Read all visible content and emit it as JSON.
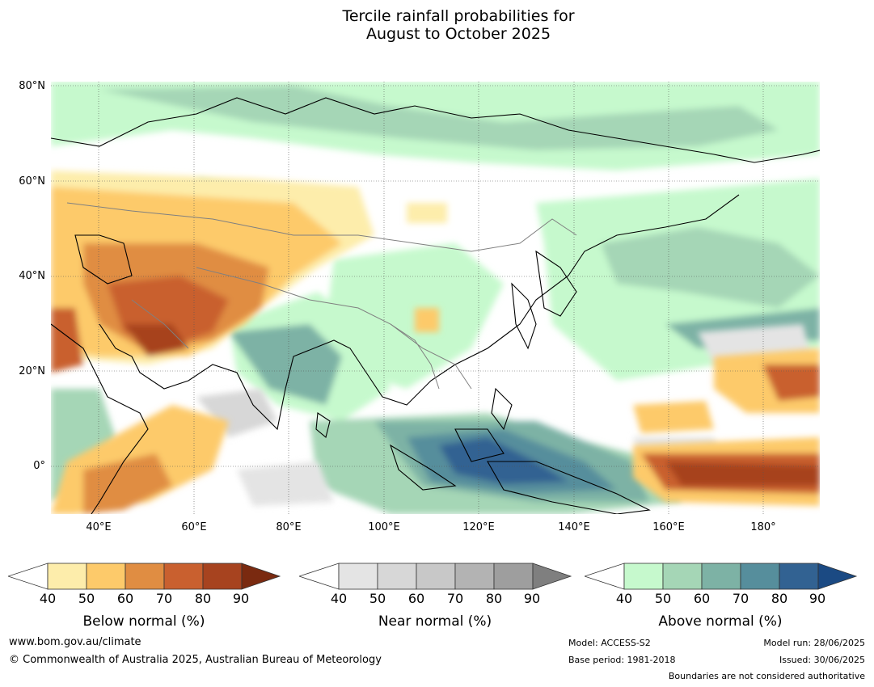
{
  "title_line1": "Tercile rainfall probabilities for",
  "title_line2": "August to October 2025",
  "lat_labels": [
    "80°N",
    "60°N",
    "40°N",
    "20°N",
    "0°"
  ],
  "lon_labels": [
    "40°E",
    "60°E",
    "80°E",
    "100°E",
    "120°E",
    "140°E",
    "160°E",
    "180°"
  ],
  "colorbars": [
    {
      "label": "Below normal (%)",
      "colors": [
        "#fdedab",
        "#fdca6a",
        "#e08d42",
        "#c9602f",
        "#a7431f",
        "#7a2a10"
      ],
      "ticks": [
        "40",
        "50",
        "60",
        "70",
        "80",
        "90"
      ]
    },
    {
      "label": "Near normal (%)",
      "colors": [
        "#e4e4e4",
        "#d7d7d7",
        "#c8c8c8",
        "#b3b3b3",
        "#9e9e9e",
        "#7f7f7f"
      ],
      "ticks": [
        "40",
        "50",
        "60",
        "70",
        "80",
        "90"
      ]
    },
    {
      "label": "Above normal (%)",
      "colors": [
        "#c6f9cd",
        "#a5d6b6",
        "#7db2a5",
        "#568e9c",
        "#326292",
        "#1b4a83"
      ],
      "ticks": [
        "40",
        "50",
        "60",
        "70",
        "80",
        "90"
      ]
    }
  ],
  "footer": {
    "url": "www.bom.gov.au/climate",
    "copyright": "© Commonwealth of Australia 2025, Australian Bureau of Meteorology",
    "model": "Model: ACCESS-S2",
    "base_period": "Base period: 1981-2018",
    "model_run": "Model run: 28/06/2025",
    "issued": "Issued: 30/06/2025",
    "disclaimer": "Boundaries are not considered authoritative"
  }
}
